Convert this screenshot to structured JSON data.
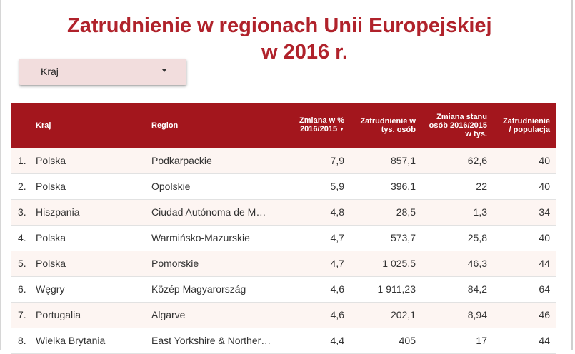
{
  "title_line1": "Zatrudnienie w regionach Unii Europejskiej",
  "title_line2": "w 2016 r.",
  "filter": {
    "label": "Kraj"
  },
  "columns": {
    "country": "Kraj",
    "region": "Region",
    "change_pct": "Zmiana w % 2016/2015",
    "employment": "Zatrudnienie w tys. osób",
    "change_abs": "Zmiana stanu osób 2016/2015 w tys.",
    "ratio": "Zatrudnienie / populacja"
  },
  "sort_indicator": "▼",
  "rows": [
    {
      "idx": "1.",
      "country": "Polska",
      "region": "Podkarpackie",
      "change_pct": "7,9",
      "employment": "857,1",
      "change_abs": "62,6",
      "ratio": "40"
    },
    {
      "idx": "2.",
      "country": "Polska",
      "region": "Opolskie",
      "change_pct": "5,9",
      "employment": "396,1",
      "change_abs": "22",
      "ratio": "40"
    },
    {
      "idx": "3.",
      "country": "Hiszpania",
      "region": "Ciudad Autónoma de M…",
      "change_pct": "4,8",
      "employment": "28,5",
      "change_abs": "1,3",
      "ratio": "34"
    },
    {
      "idx": "4.",
      "country": "Polska",
      "region": "Warmińsko-Mazurskie",
      "change_pct": "4,7",
      "employment": "573,7",
      "change_abs": "25,8",
      "ratio": "40"
    },
    {
      "idx": "5.",
      "country": "Polska",
      "region": "Pomorskie",
      "change_pct": "4,7",
      "employment": "1 025,5",
      "change_abs": "46,3",
      "ratio": "44"
    },
    {
      "idx": "6.",
      "country": "Węgry",
      "region": "Közép Magyarország",
      "change_pct": "4,6",
      "employment": "1 911,23",
      "change_abs": "84,2",
      "ratio": "64"
    },
    {
      "idx": "7.",
      "country": "Portugalia",
      "region": "Algarve",
      "change_pct": "4,6",
      "employment": "202,1",
      "change_abs": "8,94",
      "ratio": "46"
    },
    {
      "idx": "8.",
      "country": "Wielka Brytania",
      "region": "East Yorkshire & Norther…",
      "change_pct": "4,4",
      "employment": "405",
      "change_abs": "17",
      "ratio": "44"
    }
  ],
  "colors": {
    "accent": "#b0222b",
    "header_bg": "#a3161d",
    "filter_bg": "#f2dddd",
    "row_alt": "#fdf5f2"
  }
}
